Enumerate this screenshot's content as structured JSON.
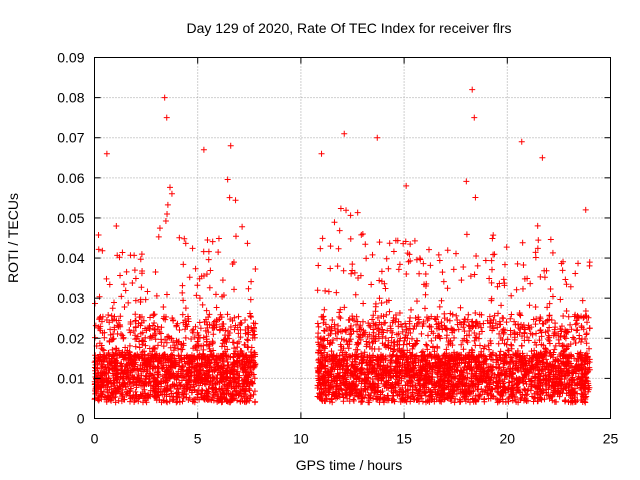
{
  "chart_data": {
    "type": "scatter",
    "title": "Day 129 of 2020, Rate Of TEC Index for receiver flrs",
    "xlabel": "GPS time / hours",
    "ylabel": "ROTI / TECUs",
    "xlim": [
      0,
      25
    ],
    "ylim": [
      0,
      0.09
    ],
    "x_ticks": [
      "0",
      "5",
      "10",
      "15",
      "20",
      "25"
    ],
    "y_ticks": [
      "0",
      "0.01",
      "0.02",
      "0.03",
      "0.04",
      "0.05",
      "0.06",
      "0.07",
      "0.08",
      "0.09"
    ],
    "grid": true,
    "marker": "+",
    "series": [
      {
        "name": "ROTI",
        "color": "#ff0000",
        "segments": [
          {
            "x_start": 0.0,
            "x_end": 7.8
          },
          {
            "x_start": 10.8,
            "x_end": 24.0
          }
        ],
        "notable_points": [
          {
            "x": 3.4,
            "y": 0.08
          },
          {
            "x": 3.5,
            "y": 0.075
          },
          {
            "x": 0.6,
            "y": 0.066
          },
          {
            "x": 5.3,
            "y": 0.067
          },
          {
            "x": 6.6,
            "y": 0.068
          },
          {
            "x": 12.1,
            "y": 0.071
          },
          {
            "x": 13.7,
            "y": 0.07
          },
          {
            "x": 18.3,
            "y": 0.082
          },
          {
            "x": 18.4,
            "y": 0.075
          },
          {
            "x": 20.7,
            "y": 0.069
          },
          {
            "x": 21.7,
            "y": 0.065
          },
          {
            "x": 11.0,
            "y": 0.066
          },
          {
            "x": 15.1,
            "y": 0.058
          },
          {
            "x": 23.8,
            "y": 0.052
          }
        ]
      }
    ]
  }
}
